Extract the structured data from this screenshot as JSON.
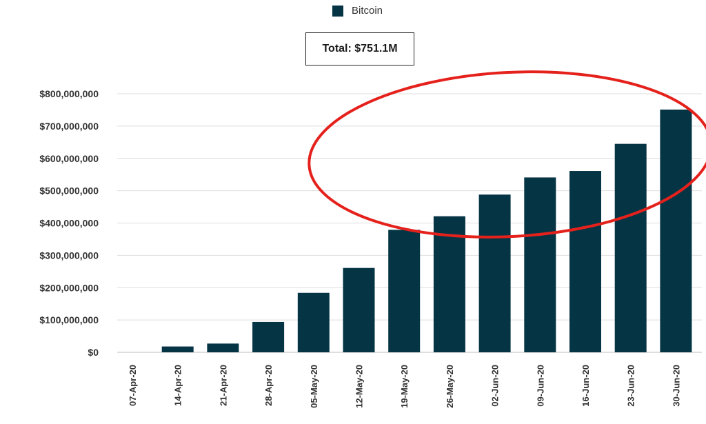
{
  "chart_data": {
    "type": "bar",
    "categories": [
      "07-Apr-20",
      "14-Apr-20",
      "21-Apr-20",
      "28-Apr-20",
      "05-May-20",
      "12-May-20",
      "19-May-20",
      "26-May-20",
      "02-Jun-20",
      "09-Jun-20",
      "16-Jun-20",
      "23-Jun-20",
      "30-Jun-20"
    ],
    "series": [
      {
        "name": "Bitcoin",
        "values": [
          0,
          18000000,
          27000000,
          94000000,
          184000000,
          261000000,
          379000000,
          421000000,
          488000000,
          541000000,
          561000000,
          645000000,
          751100000
        ]
      }
    ],
    "total_label": "Total: $751.1M",
    "ylim": [
      0,
      800000000
    ],
    "yticks": [
      "$0",
      "$100,000,000",
      "$200,000,000",
      "$300,000,000",
      "$400,000,000",
      "$500,000,000",
      "$600,000,000",
      "$700,000,000",
      "$800,000,000"
    ],
    "grid": true,
    "legend_position": "top-center",
    "bar_color": "#053445",
    "annotation": {
      "shape": "ellipse",
      "color": "#e5211c"
    }
  }
}
